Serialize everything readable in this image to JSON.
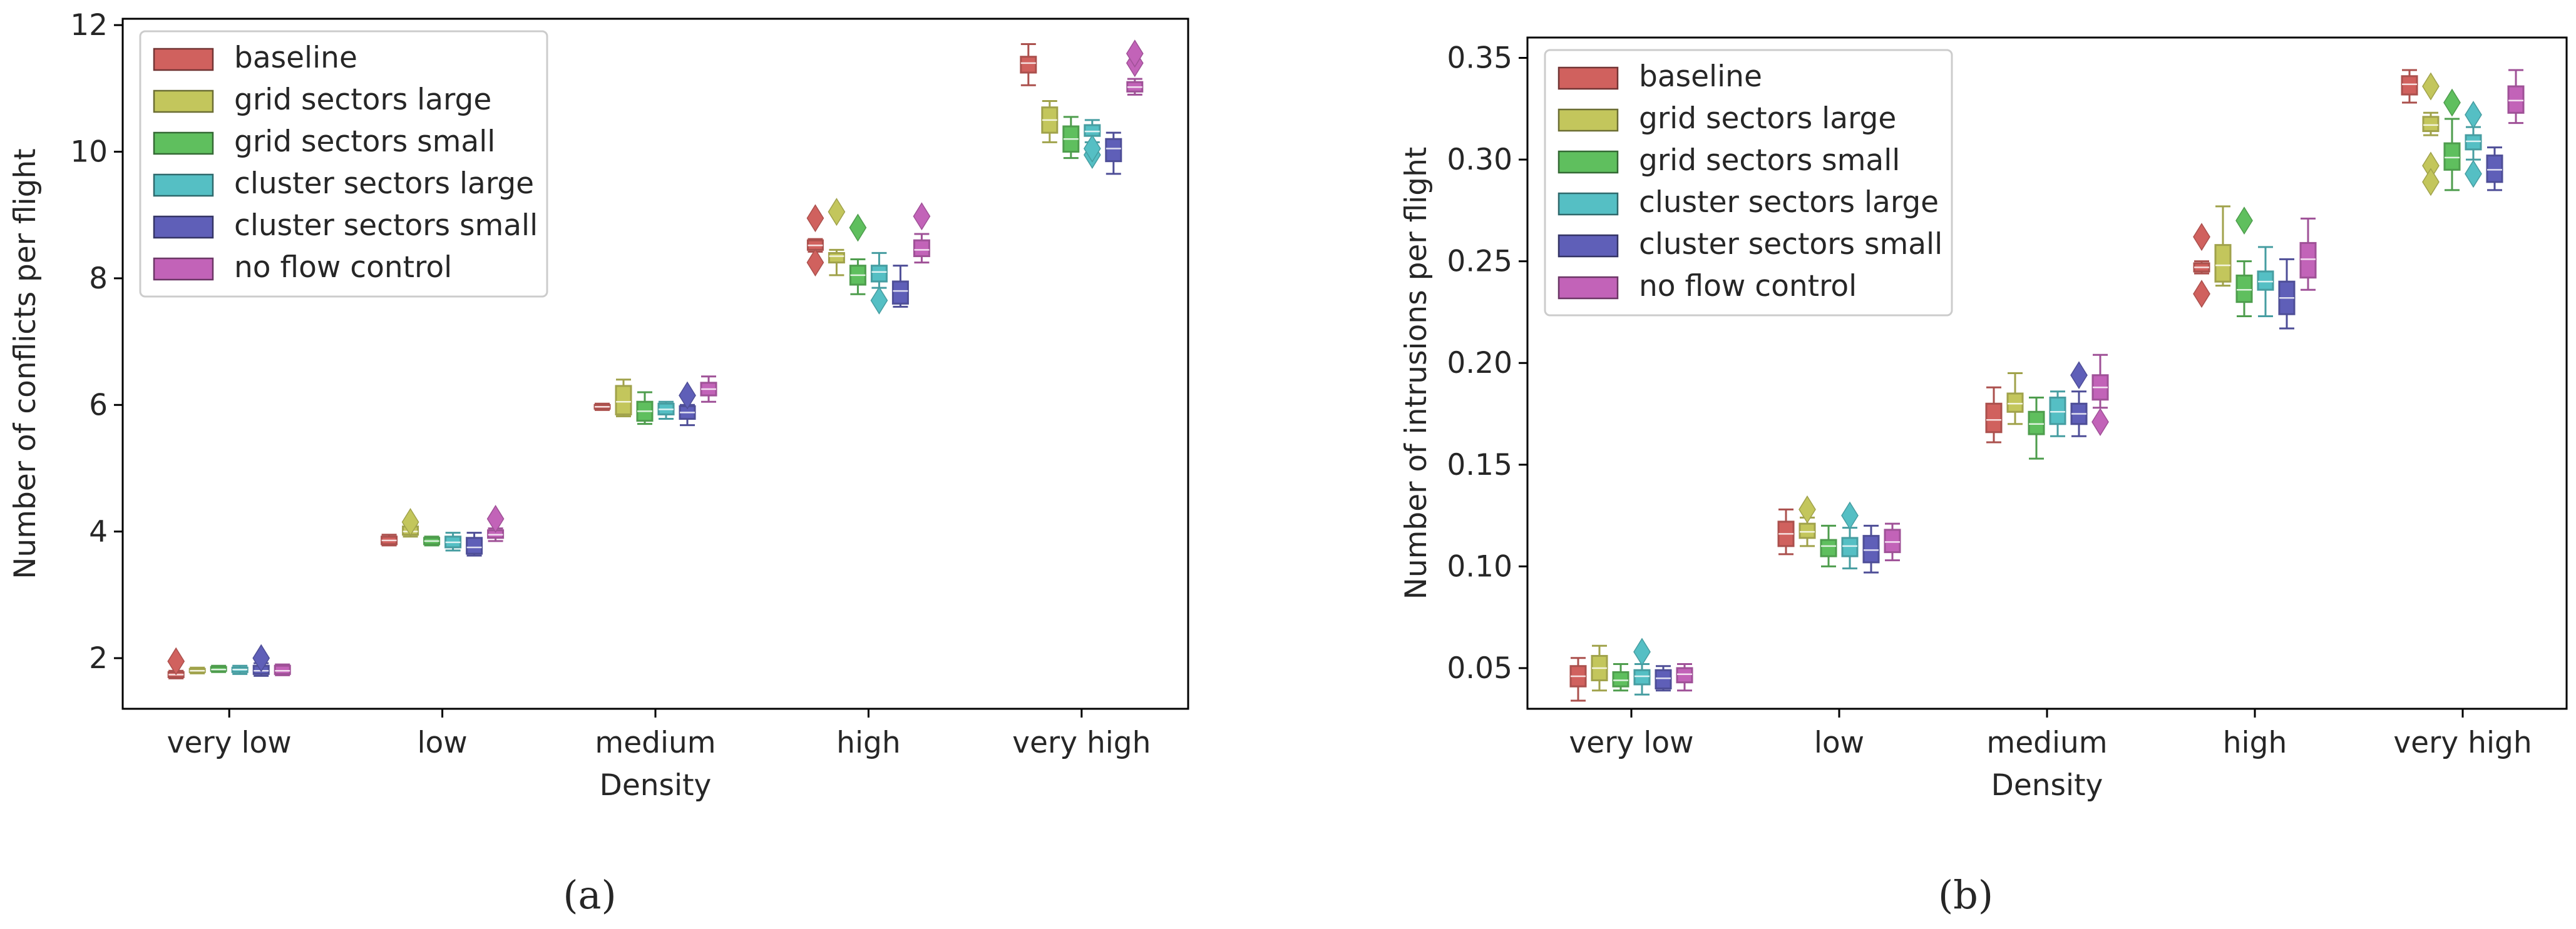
{
  "colors": {
    "baseline": "#d0615e",
    "grid sectors large": "#c3c65c",
    "grid sectors small": "#5fbf5e",
    "cluster sectors large": "#55bfc4",
    "cluster sectors small": "#5f5fb8",
    "no flow control": "#c263b8"
  },
  "chart_data": [
    {
      "type": "box",
      "caption": "(a)",
      "xlabel": "Density",
      "ylabel": "Number of conflicts per flight",
      "categories": [
        "very low",
        "low",
        "medium",
        "high",
        "very high"
      ],
      "ylim": [
        1.2,
        12.1
      ],
      "yticks": [
        2,
        4,
        6,
        8,
        10,
        12
      ],
      "ytick_labels": [
        "2",
        "4",
        "6",
        "8",
        "10",
        "12"
      ],
      "legend": {
        "loc": "upper left",
        "entries": [
          "baseline",
          "grid sectors large",
          "grid sectors small",
          "cluster sectors large",
          "cluster sectors small",
          "no flow control"
        ]
      },
      "series": [
        {
          "name": "baseline",
          "boxes": [
            {
              "q1": 1.7,
              "median": 1.74,
              "q3": 1.78,
              "whislo": 1.68,
              "whishi": 1.8,
              "fliers": [
                1.95
              ]
            },
            {
              "q1": 3.8,
              "median": 3.86,
              "q3": 3.92,
              "whislo": 3.78,
              "whishi": 3.95,
              "fliers": []
            },
            {
              "q1": 5.94,
              "median": 5.97,
              "q3": 6.0,
              "whislo": 5.92,
              "whishi": 6.02,
              "fliers": []
            },
            {
              "q1": 8.45,
              "median": 8.52,
              "q3": 8.6,
              "whislo": 8.42,
              "whishi": 8.62,
              "fliers": [
                8.95,
                8.25
              ]
            },
            {
              "q1": 11.25,
              "median": 11.4,
              "q3": 11.5,
              "whislo": 11.05,
              "whishi": 11.7,
              "fliers": []
            }
          ]
        },
        {
          "name": "grid sectors large",
          "boxes": [
            {
              "q1": 1.78,
              "median": 1.8,
              "q3": 1.83,
              "whislo": 1.76,
              "whishi": 1.85,
              "fliers": []
            },
            {
              "q1": 3.95,
              "median": 4.0,
              "q3": 4.08,
              "whislo": 3.92,
              "whishi": 4.12,
              "fliers": [
                4.15
              ]
            },
            {
              "q1": 5.85,
              "median": 6.05,
              "q3": 6.3,
              "whislo": 5.82,
              "whishi": 6.4,
              "fliers": []
            },
            {
              "q1": 8.25,
              "median": 8.35,
              "q3": 8.4,
              "whislo": 8.05,
              "whishi": 8.45,
              "fliers": [
                9.05
              ]
            },
            {
              "q1": 10.3,
              "median": 10.5,
              "q3": 10.7,
              "whislo": 10.15,
              "whishi": 10.8,
              "fliers": []
            }
          ]
        },
        {
          "name": "grid sectors small",
          "boxes": [
            {
              "q1": 1.8,
              "median": 1.82,
              "q3": 1.86,
              "whislo": 1.78,
              "whishi": 1.88,
              "fliers": []
            },
            {
              "q1": 3.8,
              "median": 3.85,
              "q3": 3.9,
              "whislo": 3.78,
              "whishi": 3.92,
              "fliers": []
            },
            {
              "q1": 5.75,
              "median": 5.9,
              "q3": 6.05,
              "whislo": 5.7,
              "whishi": 6.2,
              "fliers": []
            },
            {
              "q1": 7.9,
              "median": 8.05,
              "q3": 8.2,
              "whislo": 7.75,
              "whishi": 8.3,
              "fliers": [
                8.8
              ]
            },
            {
              "q1": 10.0,
              "median": 10.2,
              "q3": 10.4,
              "whislo": 9.9,
              "whishi": 10.55,
              "fliers": []
            }
          ]
        },
        {
          "name": "cluster sectors large",
          "boxes": [
            {
              "q1": 1.78,
              "median": 1.82,
              "q3": 1.85,
              "whislo": 1.75,
              "whishi": 1.88,
              "fliers": []
            },
            {
              "q1": 3.75,
              "median": 3.83,
              "q3": 3.92,
              "whislo": 3.7,
              "whishi": 3.98,
              "fliers": []
            },
            {
              "q1": 5.85,
              "median": 5.93,
              "q3": 6.02,
              "whislo": 5.78,
              "whishi": 6.05,
              "fliers": []
            },
            {
              "q1": 7.95,
              "median": 8.1,
              "q3": 8.2,
              "whislo": 7.85,
              "whishi": 8.4,
              "fliers": [
                7.65
              ]
            },
            {
              "q1": 10.25,
              "median": 10.32,
              "q3": 10.42,
              "whislo": 10.15,
              "whishi": 10.5,
              "fliers": [
                9.95,
                10.05
              ]
            }
          ]
        },
        {
          "name": "cluster sectors small",
          "boxes": [
            {
              "q1": 1.75,
              "median": 1.8,
              "q3": 1.88,
              "whislo": 1.72,
              "whishi": 1.92,
              "fliers": [
                2.0
              ]
            },
            {
              "q1": 3.65,
              "median": 3.75,
              "q3": 3.9,
              "whislo": 3.62,
              "whishi": 3.98,
              "fliers": []
            },
            {
              "q1": 5.78,
              "median": 5.88,
              "q3": 5.98,
              "whislo": 5.68,
              "whishi": 6.0,
              "fliers": [
                6.15
              ]
            },
            {
              "q1": 7.6,
              "median": 7.8,
              "q3": 7.95,
              "whislo": 7.55,
              "whishi": 8.2,
              "fliers": []
            },
            {
              "q1": 9.85,
              "median": 10.05,
              "q3": 10.2,
              "whislo": 9.65,
              "whishi": 10.3,
              "fliers": []
            }
          ]
        },
        {
          "name": "no flow control",
          "boxes": [
            {
              "q1": 1.75,
              "median": 1.8,
              "q3": 1.88,
              "whislo": 1.73,
              "whishi": 1.9,
              "fliers": []
            },
            {
              "q1": 3.9,
              "median": 3.95,
              "q3": 4.02,
              "whislo": 3.85,
              "whishi": 4.05,
              "fliers": [
                4.2
              ]
            },
            {
              "q1": 6.15,
              "median": 6.25,
              "q3": 6.35,
              "whislo": 6.05,
              "whishi": 6.45,
              "fliers": []
            },
            {
              "q1": 8.35,
              "median": 8.45,
              "q3": 8.6,
              "whislo": 8.25,
              "whishi": 8.7,
              "fliers": [
                8.98
              ]
            },
            {
              "q1": 10.95,
              "median": 11.02,
              "q3": 11.1,
              "whislo": 10.9,
              "whishi": 11.15,
              "fliers": [
                11.4,
                11.55
              ]
            }
          ]
        }
      ]
    },
    {
      "type": "box",
      "caption": "(b)",
      "xlabel": "Density",
      "ylabel": "Number of intrusions per flight",
      "categories": [
        "very low",
        "low",
        "medium",
        "high",
        "very high"
      ],
      "ylim": [
        0.03,
        0.36
      ],
      "yticks": [
        0.05,
        0.1,
        0.15,
        0.2,
        0.25,
        0.3,
        0.35
      ],
      "ytick_labels": [
        "0.05",
        "0.10",
        "0.15",
        "0.20",
        "0.25",
        "0.30",
        "0.35"
      ],
      "legend": {
        "loc": "upper left",
        "entries": [
          "baseline",
          "grid sectors large",
          "grid sectors small",
          "cluster sectors large",
          "cluster sectors small",
          "no flow control"
        ]
      },
      "series": [
        {
          "name": "baseline",
          "boxes": [
            {
              "q1": 0.041,
              "median": 0.046,
              "q3": 0.051,
              "whislo": 0.034,
              "whishi": 0.055,
              "fliers": []
            },
            {
              "q1": 0.11,
              "median": 0.116,
              "q3": 0.122,
              "whislo": 0.106,
              "whishi": 0.128,
              "fliers": []
            },
            {
              "q1": 0.166,
              "median": 0.172,
              "q3": 0.18,
              "whislo": 0.161,
              "whishi": 0.188,
              "fliers": []
            },
            {
              "q1": 0.245,
              "median": 0.247,
              "q3": 0.249,
              "whislo": 0.244,
              "whishi": 0.25,
              "fliers": [
                0.262,
                0.234
              ]
            },
            {
              "q1": 0.332,
              "median": 0.337,
              "q3": 0.341,
              "whislo": 0.328,
              "whishi": 0.344,
              "fliers": []
            }
          ]
        },
        {
          "name": "grid sectors large",
          "boxes": [
            {
              "q1": 0.044,
              "median": 0.05,
              "q3": 0.056,
              "whislo": 0.039,
              "whishi": 0.061,
              "fliers": []
            },
            {
              "q1": 0.114,
              "median": 0.117,
              "q3": 0.121,
              "whislo": 0.11,
              "whishi": 0.124,
              "fliers": [
                0.128
              ]
            },
            {
              "q1": 0.176,
              "median": 0.18,
              "q3": 0.185,
              "whislo": 0.17,
              "whishi": 0.195,
              "fliers": []
            },
            {
              "q1": 0.24,
              "median": 0.248,
              "q3": 0.258,
              "whislo": 0.238,
              "whishi": 0.277,
              "fliers": []
            },
            {
              "q1": 0.314,
              "median": 0.317,
              "q3": 0.321,
              "whislo": 0.312,
              "whishi": 0.323,
              "fliers": [
                0.336,
                0.297,
                0.289
              ]
            }
          ]
        },
        {
          "name": "grid sectors small",
          "boxes": [
            {
              "q1": 0.041,
              "median": 0.044,
              "q3": 0.048,
              "whislo": 0.039,
              "whishi": 0.052,
              "fliers": []
            },
            {
              "q1": 0.105,
              "median": 0.11,
              "q3": 0.113,
              "whislo": 0.1,
              "whishi": 0.12,
              "fliers": []
            },
            {
              "q1": 0.165,
              "median": 0.17,
              "q3": 0.176,
              "whislo": 0.153,
              "whishi": 0.183,
              "fliers": []
            },
            {
              "q1": 0.23,
              "median": 0.236,
              "q3": 0.243,
              "whislo": 0.223,
              "whishi": 0.25,
              "fliers": [
                0.27
              ]
            },
            {
              "q1": 0.295,
              "median": 0.301,
              "q3": 0.308,
              "whislo": 0.285,
              "whishi": 0.32,
              "fliers": [
                0.328
              ]
            }
          ]
        },
        {
          "name": "cluster sectors large",
          "boxes": [
            {
              "q1": 0.042,
              "median": 0.046,
              "q3": 0.049,
              "whislo": 0.037,
              "whishi": 0.052,
              "fliers": [
                0.058
              ]
            },
            {
              "q1": 0.105,
              "median": 0.11,
              "q3": 0.114,
              "whislo": 0.099,
              "whishi": 0.119,
              "fliers": [
                0.125
              ]
            },
            {
              "q1": 0.17,
              "median": 0.176,
              "q3": 0.183,
              "whislo": 0.164,
              "whishi": 0.186,
              "fliers": []
            },
            {
              "q1": 0.236,
              "median": 0.24,
              "q3": 0.245,
              "whislo": 0.223,
              "whishi": 0.257,
              "fliers": []
            },
            {
              "q1": 0.305,
              "median": 0.309,
              "q3": 0.312,
              "whislo": 0.3,
              "whishi": 0.316,
              "fliers": [
                0.322,
                0.293
              ]
            }
          ]
        },
        {
          "name": "cluster sectors small",
          "boxes": [
            {
              "q1": 0.04,
              "median": 0.045,
              "q3": 0.049,
              "whislo": 0.039,
              "whishi": 0.051,
              "fliers": []
            },
            {
              "q1": 0.102,
              "median": 0.108,
              "q3": 0.115,
              "whislo": 0.097,
              "whishi": 0.12,
              "fliers": []
            },
            {
              "q1": 0.17,
              "median": 0.175,
              "q3": 0.18,
              "whislo": 0.164,
              "whishi": 0.186,
              "fliers": [
                0.194
              ]
            },
            {
              "q1": 0.224,
              "median": 0.232,
              "q3": 0.24,
              "whislo": 0.217,
              "whishi": 0.251,
              "fliers": []
            },
            {
              "q1": 0.289,
              "median": 0.295,
              "q3": 0.302,
              "whislo": 0.285,
              "whishi": 0.306,
              "fliers": []
            }
          ]
        },
        {
          "name": "no flow control",
          "boxes": [
            {
              "q1": 0.043,
              "median": 0.047,
              "q3": 0.05,
              "whislo": 0.039,
              "whishi": 0.052,
              "fliers": []
            },
            {
              "q1": 0.107,
              "median": 0.112,
              "q3": 0.118,
              "whislo": 0.103,
              "whishi": 0.121,
              "fliers": []
            },
            {
              "q1": 0.182,
              "median": 0.188,
              "q3": 0.194,
              "whislo": 0.178,
              "whishi": 0.204,
              "fliers": [
                0.171
              ]
            },
            {
              "q1": 0.242,
              "median": 0.251,
              "q3": 0.259,
              "whislo": 0.236,
              "whishi": 0.271,
              "fliers": []
            },
            {
              "q1": 0.323,
              "median": 0.329,
              "q3": 0.336,
              "whislo": 0.318,
              "whishi": 0.344,
              "fliers": []
            }
          ]
        }
      ]
    }
  ]
}
